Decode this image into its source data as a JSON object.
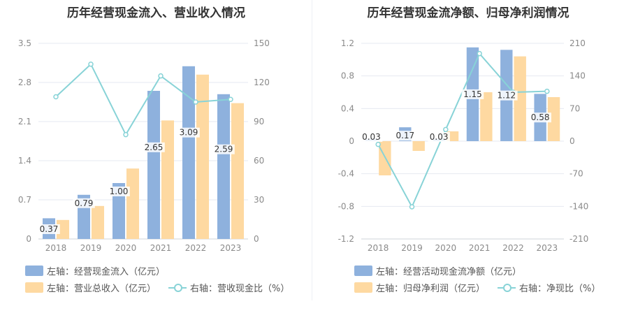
{
  "chart_data": [
    {
      "type": "bar",
      "title": "历年经营现金流入、营业收入情况",
      "categories": [
        "2018",
        "2019",
        "2020",
        "2021",
        "2022",
        "2023"
      ],
      "y_left": {
        "ticks": [
          "0",
          "0.7",
          "1.4",
          "2.1",
          "2.8",
          "3.5"
        ],
        "range": [
          0,
          3.5
        ]
      },
      "y_right": {
        "ticks": [
          "0",
          "30",
          "60",
          "90",
          "120",
          "150"
        ],
        "range": [
          0,
          150
        ]
      },
      "series": [
        {
          "name": "左轴：经营现金流入（亿元）",
          "type": "bar",
          "axis": "left",
          "color": "#8eb1dd",
          "values": [
            0.37,
            0.79,
            1.0,
            2.65,
            3.09,
            2.59
          ],
          "labels": [
            "0.37",
            "0.79",
            "1.00",
            "2.65",
            "3.09",
            "2.59"
          ]
        },
        {
          "name": "左轴：营业总收入（亿元）",
          "type": "bar",
          "axis": "left",
          "color": "#fed9a1",
          "values": [
            0.34,
            0.59,
            1.26,
            2.12,
            2.94,
            2.43
          ]
        },
        {
          "name": "右轴：营收现金比（%）",
          "type": "line",
          "axis": "right",
          "color": "#88d3d7",
          "values": [
            109,
            134,
            80,
            125,
            105,
            107
          ]
        }
      ],
      "grid": true,
      "legend": "bottom-left"
    },
    {
      "type": "bar",
      "title": "历年经营现金流净额、归母净利润情况",
      "categories": [
        "2018",
        "2019",
        "2020",
        "2021",
        "2022",
        "2023"
      ],
      "y_left": {
        "ticks": [
          "-1.2",
          "-0.8",
          "-0.4",
          "0",
          "0.4",
          "0.8",
          "1.2"
        ],
        "range": [
          -1.2,
          1.2
        ]
      },
      "y_right": {
        "ticks": [
          "-210",
          "-140",
          "-70",
          "0",
          "70",
          "140",
          "210"
        ],
        "range": [
          -210,
          210
        ]
      },
      "series": [
        {
          "name": "左轴：经营活动现金流净额（亿元）",
          "type": "bar",
          "axis": "left",
          "color": "#8eb1dd",
          "values": [
            0.03,
            0.17,
            0.03,
            1.15,
            1.12,
            0.58
          ],
          "labels": [
            "0.03",
            "0.17",
            "0.03",
            "1.15",
            "1.12",
            "0.58"
          ]
        },
        {
          "name": "左轴：归母净利润（亿元）",
          "type": "bar",
          "axis": "left",
          "color": "#fed9a1",
          "values": [
            -0.42,
            -0.12,
            0.12,
            0.6,
            1.04,
            0.54
          ]
        },
        {
          "name": "右轴：净现比（%）",
          "type": "line",
          "axis": "right",
          "color": "#88d3d7",
          "values": [
            -7,
            -141,
            25,
            188,
            105,
            107
          ]
        }
      ],
      "grid": true,
      "legend": "bottom-left"
    }
  ]
}
